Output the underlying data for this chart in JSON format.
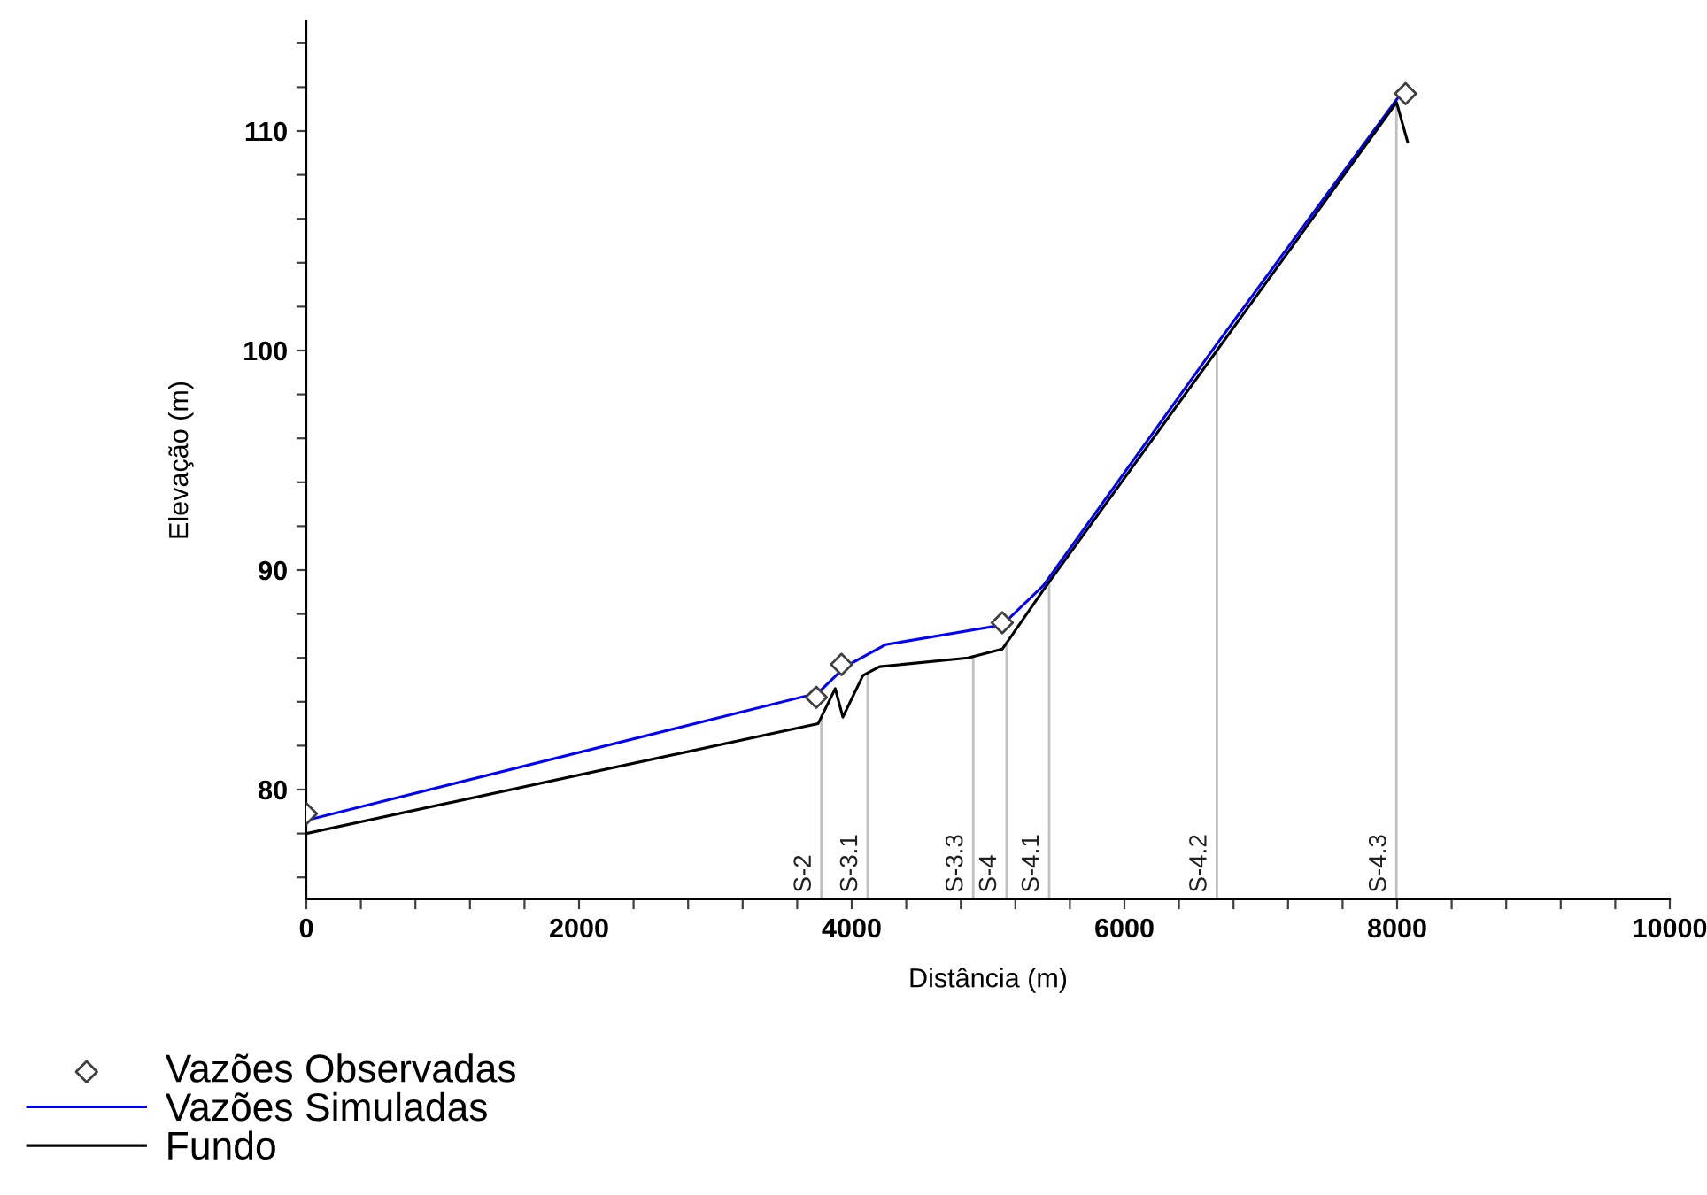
{
  "chart_data": {
    "type": "line",
    "xlabel": "Distância (m)",
    "ylabel": "Elevação (m)",
    "xlim": [
      0,
      10000
    ],
    "ylim": [
      75,
      115
    ],
    "xticks": [
      0,
      {
        "value": 400,
        "label": null
      },
      {
        "value": 800,
        "label": null
      },
      {
        "value": 1200,
        "label": null
      },
      {
        "value": 1600,
        "label": null
      },
      2000,
      {
        "value": 2400,
        "label": null
      },
      {
        "value": 2800,
        "label": null
      },
      {
        "value": 3200,
        "label": null
      },
      {
        "value": 3600,
        "label": null
      },
      4000,
      {
        "value": 4400,
        "label": null
      },
      {
        "value": 4800,
        "label": null
      },
      {
        "value": 5200,
        "label": null
      },
      {
        "value": 5600,
        "label": null
      },
      6000,
      {
        "value": 6400,
        "label": null
      },
      {
        "value": 6800,
        "label": null
      },
      {
        "value": 7200,
        "label": null
      },
      {
        "value": 7600,
        "label": null
      },
      8000,
      {
        "value": 8400,
        "label": null
      },
      {
        "value": 8800,
        "label": null
      },
      {
        "value": 9200,
        "label": null
      },
      {
        "value": 9600,
        "label": null
      },
      10000
    ],
    "yticks": [
      {
        "value": 76,
        "label": null
      },
      {
        "value": 78,
        "label": null
      },
      80,
      {
        "value": 82,
        "label": null
      },
      {
        "value": 84,
        "label": null
      },
      {
        "value": 86,
        "label": null
      },
      {
        "value": 88,
        "label": null
      },
      90,
      {
        "value": 92,
        "label": null
      },
      {
        "value": 94,
        "label": null
      },
      {
        "value": 96,
        "label": null
      },
      {
        "value": 98,
        "label": null
      },
      100,
      {
        "value": 102,
        "label": null
      },
      {
        "value": 104,
        "label": null
      },
      {
        "value": 106,
        "label": null
      },
      {
        "value": 108,
        "label": null
      },
      110,
      {
        "value": 112,
        "label": null
      },
      {
        "value": 114,
        "label": null
      }
    ],
    "grid": false,
    "legend": "bottom left",
    "series": [
      {
        "name": "Vazões Observadas",
        "type": "scatter",
        "marker": "diamond",
        "color": "#404040",
        "x": [
          0,
          3740,
          3925,
          5104,
          8062
        ],
        "values": [
          78.9,
          84.2,
          85.7,
          87.6,
          111.7
        ]
      },
      {
        "name": "Vazões Simuladas",
        "type": "line",
        "color": "#0000ff",
        "x": [
          0,
          3753,
          3952,
          4247,
          5104,
          5406,
          6678,
          8016
        ],
        "values": [
          78.6,
          84.4,
          85.6,
          86.6,
          87.5,
          89.3,
          100.3,
          111.6
        ]
      },
      {
        "name": "Fundo",
        "type": "line",
        "color": "#000000",
        "x": [
          0,
          3753,
          3879,
          3935,
          4082,
          4204,
          4853,
          5104,
          5406,
          6678,
          7996,
          8077
        ],
        "values": [
          78.0,
          83.0,
          84.6,
          83.3,
          85.2,
          85.6,
          86.0,
          86.4,
          89.1,
          100.0,
          111.3,
          109.5
        ]
      }
    ],
    "ref_lines": [
      {
        "axis": "x",
        "value": 3777,
        "label": "S-2",
        "color": "#c0c0c0"
      },
      {
        "axis": "x",
        "value": 4117,
        "label": "S-3.1",
        "color": "#c0c0c0"
      },
      {
        "axis": "x",
        "value": 4891,
        "label": "S-3.3",
        "color": "#c0c0c0"
      },
      {
        "axis": "x",
        "value": 5136,
        "label": "S-4",
        "color": "#c0c0c0"
      },
      {
        "axis": "x",
        "value": 5448,
        "label": "S-4.1",
        "color": "#c0c0c0"
      },
      {
        "axis": "x",
        "value": 6678,
        "label": "S-4.2",
        "color": "#c0c0c0"
      },
      {
        "axis": "x",
        "value": 7995,
        "label": "S-4.3",
        "color": "#c0c0c0"
      }
    ]
  }
}
